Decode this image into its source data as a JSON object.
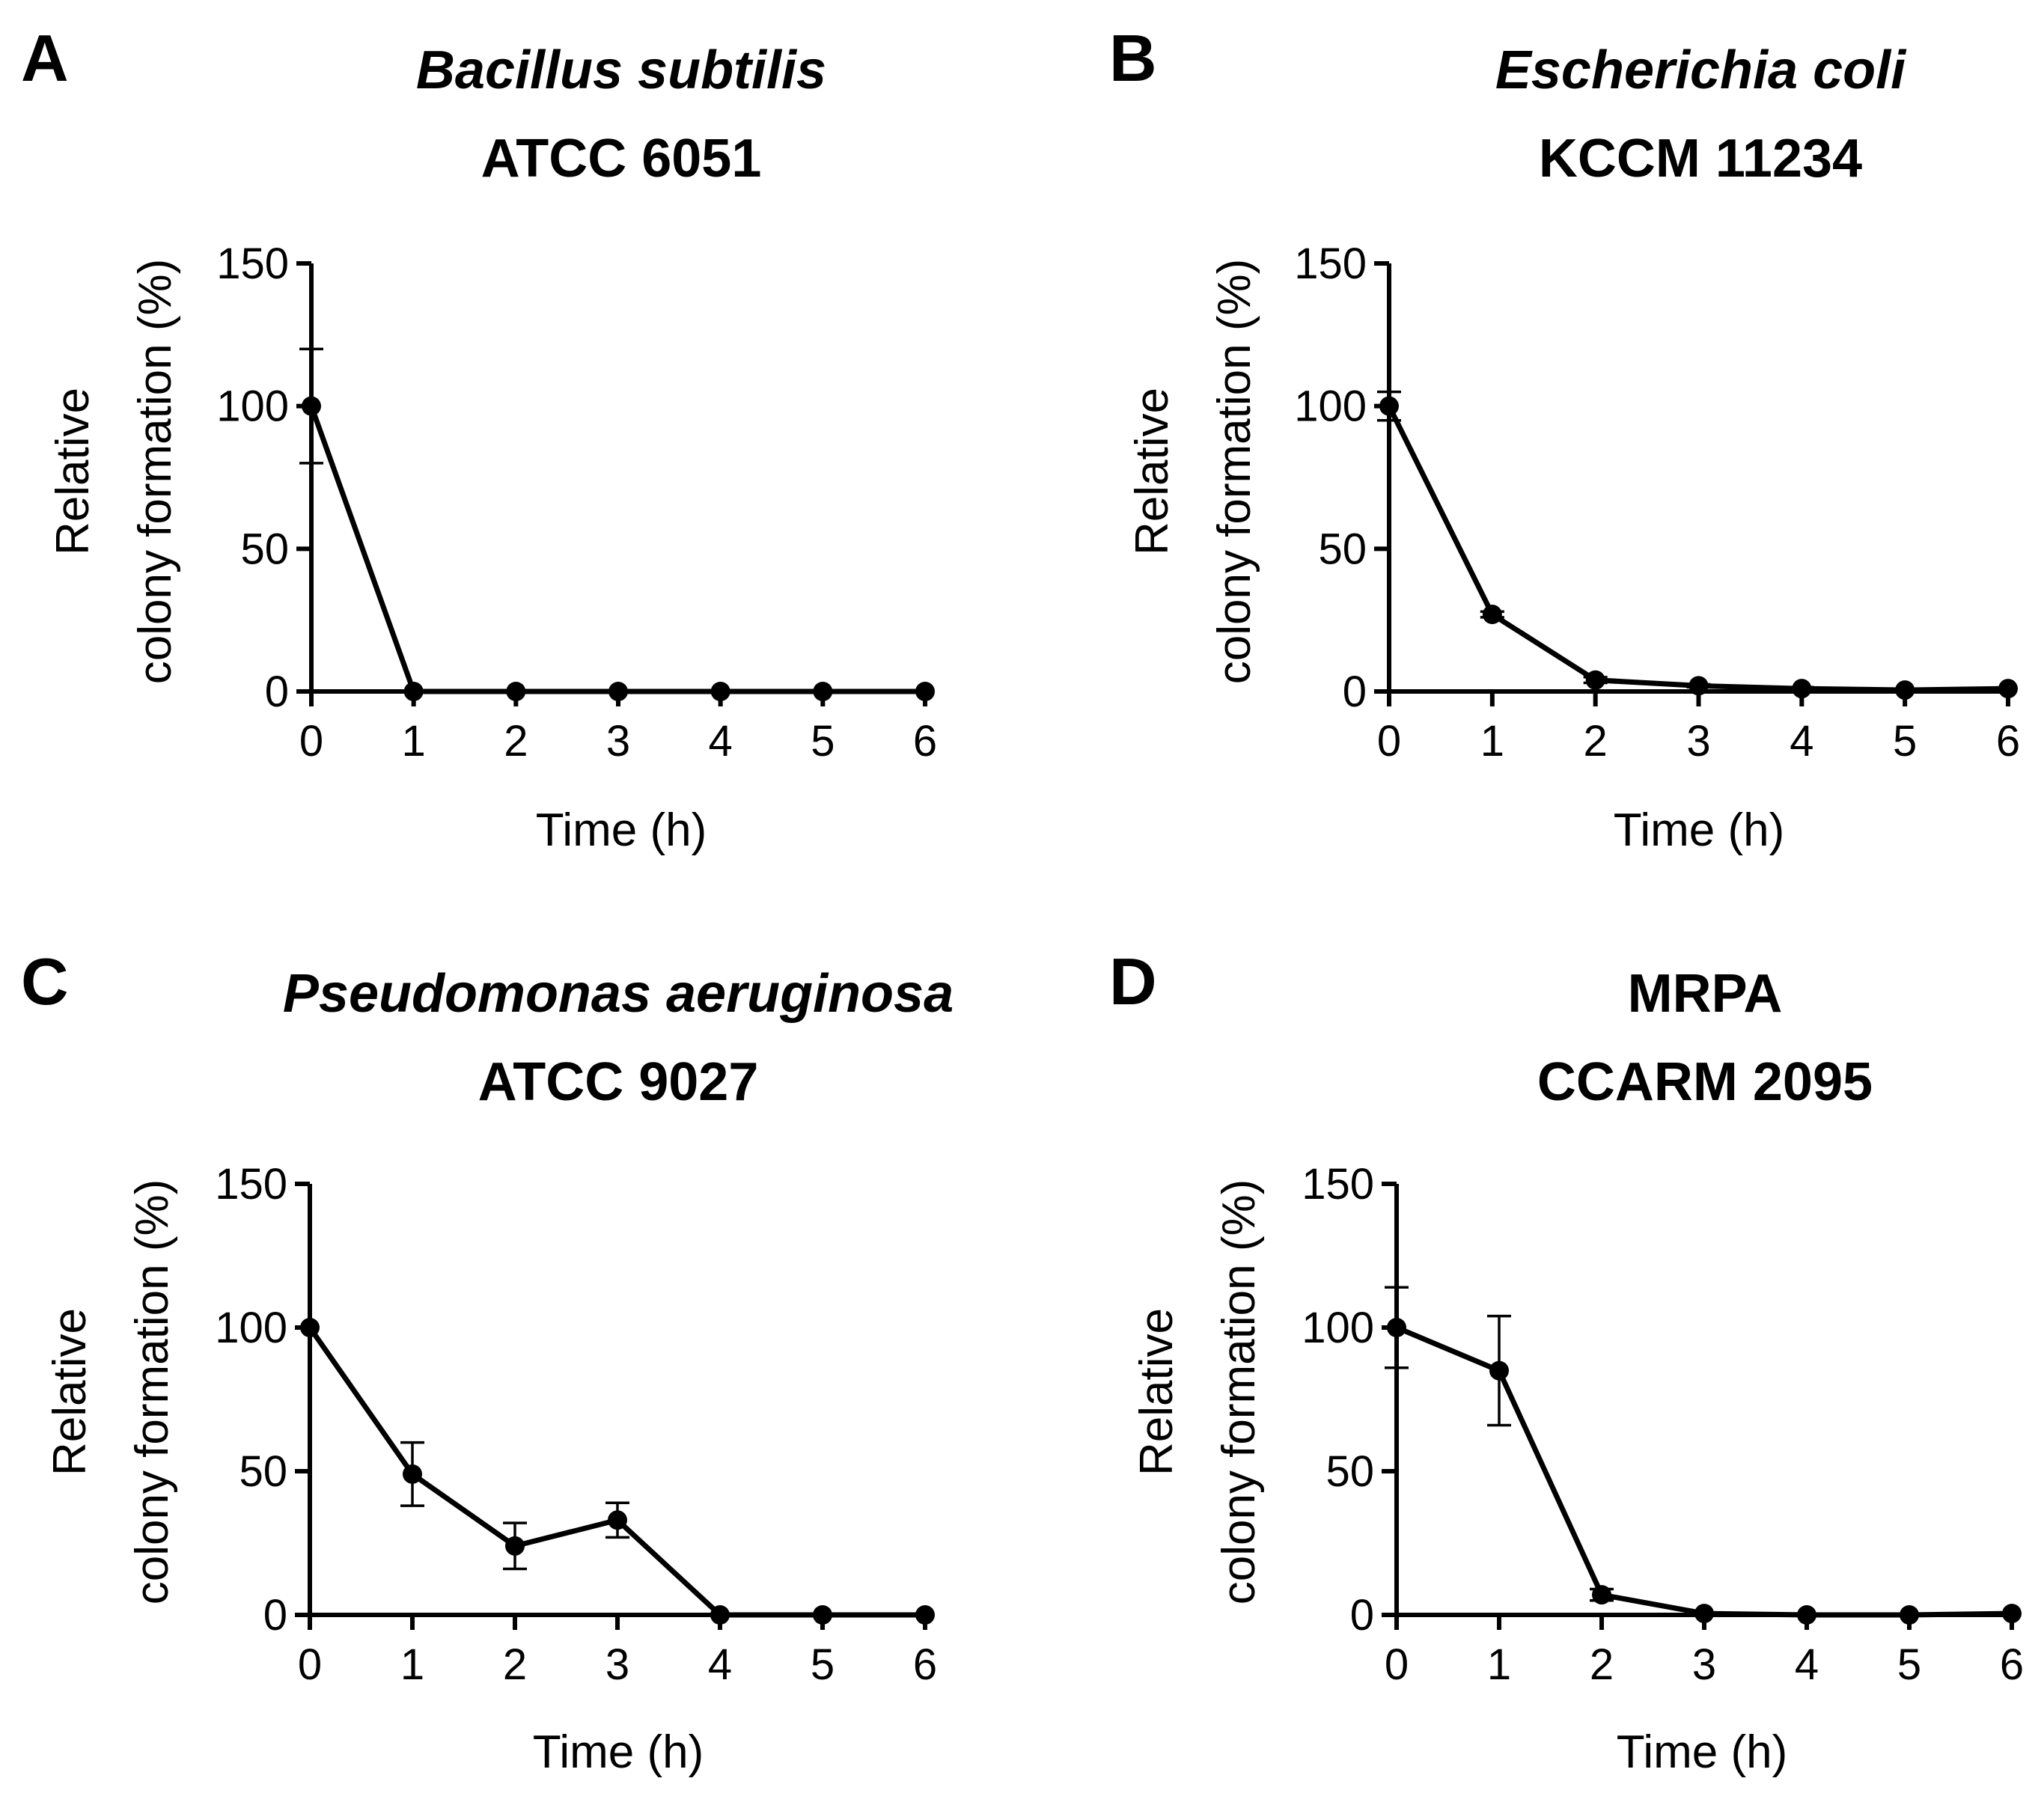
{
  "chart_data": [
    {
      "type": "line",
      "panel": "A",
      "title_line1": "Bacillus subtilis",
      "title_line1_style": "italic",
      "title_line2": "ATCC 6051",
      "xlabel": "Time (h)",
      "ylabel_line1": "Relative",
      "ylabel_line2": "colony formation (%)",
      "x": [
        0,
        1,
        2,
        3,
        4,
        5,
        6
      ],
      "values": [
        100,
        0,
        0,
        0,
        0,
        0,
        0
      ],
      "error": [
        20,
        0,
        0,
        0,
        0,
        0,
        0
      ],
      "xlim": [
        0,
        6
      ],
      "ylim": [
        0,
        150
      ],
      "xticks": [
        "0",
        "1",
        "2",
        "3",
        "4",
        "5",
        "6"
      ],
      "yticks": [
        "0",
        "50",
        "100",
        "150"
      ]
    },
    {
      "type": "line",
      "panel": "B",
      "title_line1": "Escherichia coli",
      "title_line1_style": "italic",
      "title_line2": "KCCM 11234",
      "xlabel": "Time (h)",
      "ylabel_line1": "Relative",
      "ylabel_line2": "colony formation (%)",
      "x": [
        0,
        1,
        2,
        3,
        4,
        5,
        6
      ],
      "values": [
        100,
        27,
        4,
        2,
        1,
        0.5,
        1
      ],
      "error": [
        5,
        1,
        1,
        0.5,
        0.5,
        0,
        0
      ],
      "xlim": [
        0,
        6
      ],
      "ylim": [
        0,
        150
      ],
      "xticks": [
        "0",
        "1",
        "2",
        "3",
        "4",
        "5",
        "6"
      ],
      "yticks": [
        "0",
        "50",
        "100",
        "150"
      ]
    },
    {
      "type": "line",
      "panel": "C",
      "title_line1": "Pseudomonas aeruginosa",
      "title_line1_style": "italic",
      "title_line2": "ATCC 9027",
      "xlabel": "Time (h)",
      "ylabel_line1": "Relative",
      "ylabel_line2": "colony formation (%)",
      "x": [
        0,
        1,
        2,
        3,
        4,
        5,
        6
      ],
      "values": [
        100,
        49,
        24,
        33,
        0,
        0,
        0
      ],
      "error": [
        0,
        11,
        8,
        6,
        0,
        0,
        0
      ],
      "xlim": [
        0,
        6
      ],
      "ylim": [
        0,
        150
      ],
      "xticks": [
        "0",
        "1",
        "2",
        "3",
        "4",
        "5",
        "6"
      ],
      "yticks": [
        "0",
        "50",
        "100",
        "150"
      ]
    },
    {
      "type": "line",
      "panel": "D",
      "title_line1": "MRPA",
      "title_line1_style": "bold",
      "title_line2": "CCARM 2095",
      "xlabel": "Time (h)",
      "ylabel_line1": "Relative",
      "ylabel_line2": "colony formation (%)",
      "x": [
        0,
        1,
        2,
        3,
        4,
        5,
        6
      ],
      "values": [
        100,
        85,
        7,
        0.5,
        0,
        0,
        0.5
      ],
      "error": [
        14,
        19,
        2,
        0,
        0,
        0,
        0
      ],
      "xlim": [
        0,
        6
      ],
      "ylim": [
        0,
        150
      ],
      "xticks": [
        "0",
        "1",
        "2",
        "3",
        "4",
        "5",
        "6"
      ],
      "yticks": [
        "0",
        "50",
        "100",
        "150"
      ]
    }
  ]
}
